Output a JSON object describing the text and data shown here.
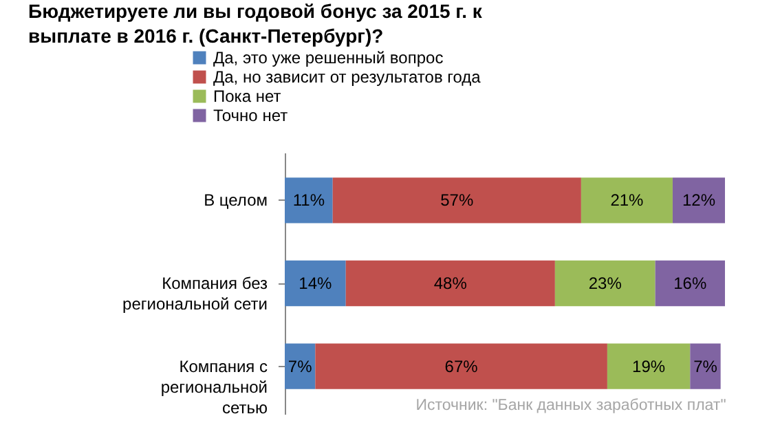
{
  "chart_data": {
    "type": "bar",
    "title": "Бюджетируете ли вы годовой бонус за 2015 г. к выплате в 2016 г. (Санкт-Петербург)?",
    "orientation": "horizontal",
    "stacked": true,
    "legend": "top",
    "grid": false,
    "categories": [
      "В целом",
      "Компания без региональной сети",
      "Компания с региональной сетью"
    ],
    "series": [
      {
        "name": "Да, это уже решенный вопрос",
        "color": "#4f81bd",
        "values": [
          11,
          14,
          7
        ],
        "value_labels": [
          "11%",
          "14%",
          "7%"
        ]
      },
      {
        "name": "Да, но зависит от результатов года",
        "color": "#c0504d",
        "values": [
          57,
          48,
          67
        ],
        "value_labels": [
          "57%",
          "48%",
          "67%"
        ]
      },
      {
        "name": "Пока нет",
        "color": "#9bbb59",
        "values": [
          21,
          23,
          19
        ],
        "value_labels": [
          "21%",
          "23%",
          "19%"
        ]
      },
      {
        "name": "Точно нет",
        "color": "#8064a2",
        "values": [
          12,
          16,
          7
        ],
        "value_labels": [
          "12%",
          "16%",
          "7%"
        ]
      }
    ],
    "annotations": [
      "Источник: \"Банк данных заработных плат\""
    ]
  }
}
